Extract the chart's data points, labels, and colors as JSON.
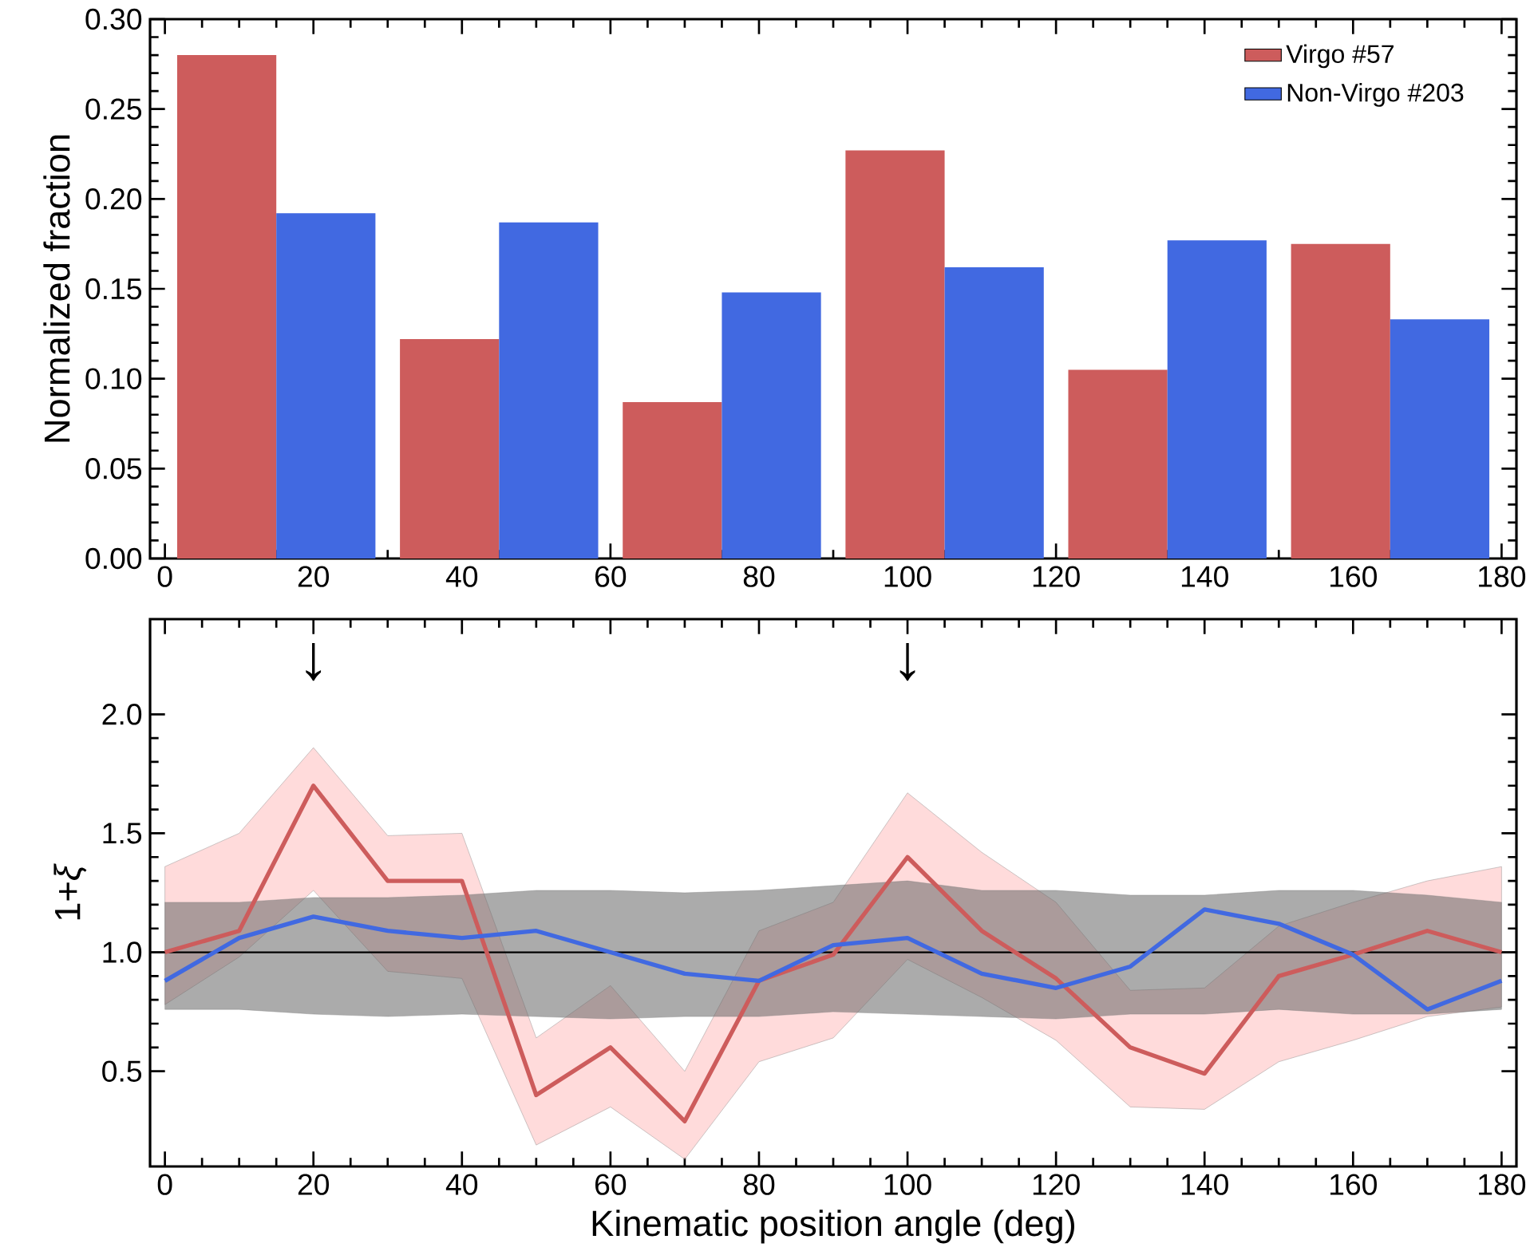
{
  "chart_data": [
    {
      "type": "bar",
      "ylabel": "Normalized fraction",
      "x": [
        15,
        45,
        75,
        105,
        135,
        165
      ],
      "series": [
        {
          "name": "Virgo #57",
          "color": "#cd5c5c",
          "values": [
            0.28,
            0.122,
            0.087,
            0.227,
            0.105,
            0.175
          ]
        },
        {
          "name": "Non-Virgo #203",
          "color": "#4169e1",
          "values": [
            0.192,
            0.187,
            0.148,
            0.162,
            0.177,
            0.133
          ]
        }
      ],
      "xlim": [
        -2,
        182
      ],
      "xticks": [
        0,
        20,
        40,
        60,
        80,
        100,
        120,
        140,
        160,
        180
      ],
      "ylim": [
        0,
        0.3
      ],
      "yticks": [
        {
          "value": 0,
          "label": "0.00"
        },
        {
          "value": 0.05,
          "label": "0.05"
        },
        {
          "value": 0.1,
          "label": "0.10"
        },
        {
          "value": 0.15,
          "label": "0.15"
        },
        {
          "value": 0.2,
          "label": "0.20"
        },
        {
          "value": 0.25,
          "label": "0.25"
        },
        {
          "value": 0.3,
          "label": "0.30"
        }
      ],
      "legend": "top right"
    },
    {
      "type": "line",
      "xlabel": "Kinematic position angle (deg)",
      "ylabel": "1+*ξ*",
      "x": [
        0,
        10,
        20,
        30,
        40,
        50,
        60,
        70,
        80,
        90,
        100,
        110,
        120,
        130,
        140,
        150,
        160,
        170,
        180
      ],
      "series": [
        {
          "color": "#cd5c5c",
          "values": [
            1.0,
            1.09,
            1.7,
            1.3,
            1.3,
            0.4,
            0.6,
            0.29,
            0.88,
            0.99,
            1.4,
            1.09,
            0.89,
            0.6,
            0.49,
            0.9,
            0.99,
            1.09,
            1.0
          ],
          "lower": [
            0.78,
            0.98,
            1.26,
            0.92,
            0.89,
            0.19,
            0.35,
            0.13,
            0.54,
            0.64,
            0.97,
            0.81,
            0.63,
            0.35,
            0.34,
            0.54,
            0.63,
            0.73,
            0.77
          ],
          "upper": [
            1.36,
            1.5,
            1.86,
            1.49,
            1.5,
            0.64,
            0.86,
            0.5,
            1.09,
            1.21,
            1.67,
            1.42,
            1.21,
            0.84,
            0.85,
            1.11,
            1.21,
            1.3,
            1.36
          ]
        },
        {
          "color": "#4169e1",
          "values": [
            0.88,
            1.06,
            1.15,
            1.09,
            1.06,
            1.09,
            1.0,
            0.91,
            0.88,
            1.03,
            1.06,
            0.91,
            0.85,
            0.94,
            1.18,
            1.12,
            0.99,
            0.76,
            0.88
          ],
          "lower": [
            0.76,
            0.76,
            0.74,
            0.73,
            0.74,
            0.73,
            0.72,
            0.73,
            0.73,
            0.75,
            0.74,
            0.73,
            0.72,
            0.74,
            0.74,
            0.76,
            0.74,
            0.74,
            0.76
          ],
          "upper": [
            1.21,
            1.21,
            1.23,
            1.23,
            1.24,
            1.26,
            1.26,
            1.25,
            1.26,
            1.28,
            1.3,
            1.26,
            1.26,
            1.24,
            1.24,
            1.26,
            1.26,
            1.24,
            1.21
          ]
        }
      ],
      "ref_lines": [
        {
          "axis": "y",
          "value": 1,
          "color": "#000000"
        }
      ],
      "annotations": [
        {
          "text": "↓",
          "x": 20
        },
        {
          "text": "↓",
          "x": 100
        }
      ],
      "xlim": [
        -2,
        182
      ],
      "xticks": [
        0,
        20,
        40,
        60,
        80,
        100,
        120,
        140,
        160,
        180
      ],
      "ylim": [
        0.1,
        2.4
      ],
      "yticks": [
        {
          "value": 0.5,
          "label": "0.5"
        },
        {
          "value": 1.0,
          "label": "1.0"
        },
        {
          "value": 1.5,
          "label": "1.5"
        },
        {
          "value": 2.0,
          "label": "2.0"
        }
      ]
    }
  ]
}
